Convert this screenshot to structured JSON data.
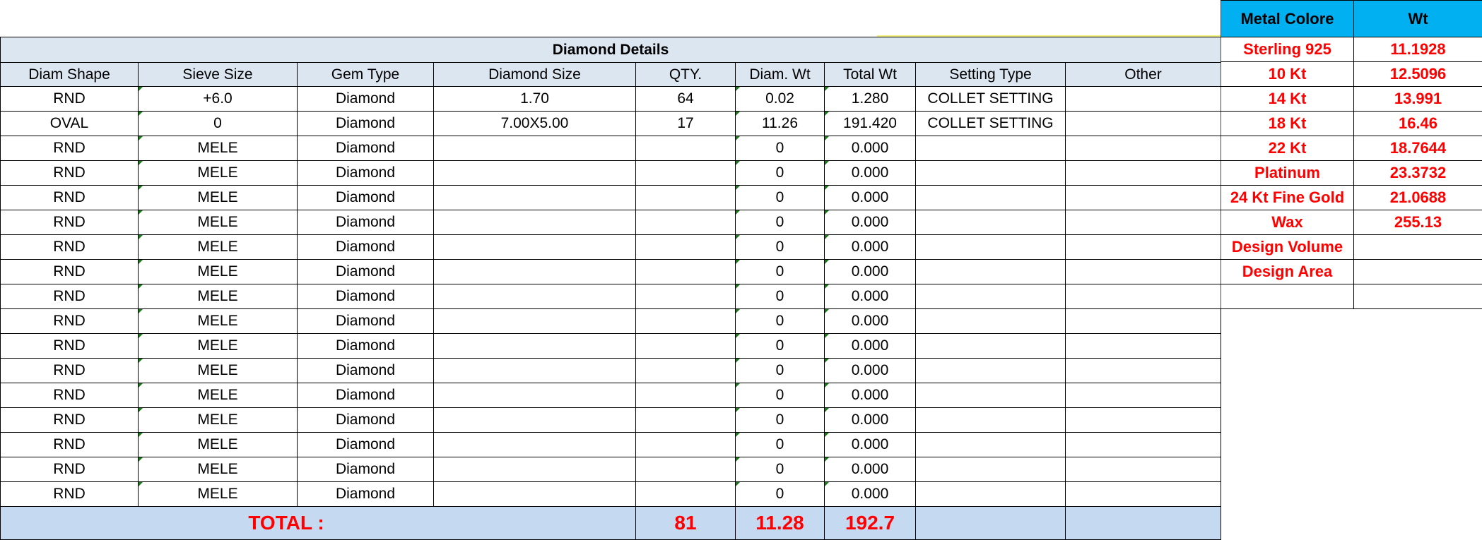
{
  "diamond_details": {
    "title": "Diamond Details",
    "columns": [
      "Diam Shape",
      "Sieve Size",
      "Gem Type",
      "Diamond Size",
      "QTY.",
      "Diam. Wt",
      "Total Wt",
      "Setting Type",
      "Other"
    ],
    "rows": [
      [
        "RND",
        "+6.0",
        "Diamond",
        "1.70",
        "64",
        "0.02",
        "1.280",
        "COLLET SETTING",
        ""
      ],
      [
        "OVAL",
        "0",
        "Diamond",
        "7.00X5.00",
        "17",
        "11.26",
        "191.420",
        "COLLET SETTING",
        ""
      ],
      [
        "RND",
        "MELE",
        "Diamond",
        "",
        "",
        "0",
        "0.000",
        "",
        ""
      ],
      [
        "RND",
        "MELE",
        "Diamond",
        "",
        "",
        "0",
        "0.000",
        "",
        ""
      ],
      [
        "RND",
        "MELE",
        "Diamond",
        "",
        "",
        "0",
        "0.000",
        "",
        ""
      ],
      [
        "RND",
        "MELE",
        "Diamond",
        "",
        "",
        "0",
        "0.000",
        "",
        ""
      ],
      [
        "RND",
        "MELE",
        "Diamond",
        "",
        "",
        "0",
        "0.000",
        "",
        ""
      ],
      [
        "RND",
        "MELE",
        "Diamond",
        "",
        "",
        "0",
        "0.000",
        "",
        ""
      ],
      [
        "RND",
        "MELE",
        "Diamond",
        "",
        "",
        "0",
        "0.000",
        "",
        ""
      ],
      [
        "RND",
        "MELE",
        "Diamond",
        "",
        "",
        "0",
        "0.000",
        "",
        ""
      ],
      [
        "RND",
        "MELE",
        "Diamond",
        "",
        "",
        "0",
        "0.000",
        "",
        ""
      ],
      [
        "RND",
        "MELE",
        "Diamond",
        "",
        "",
        "0",
        "0.000",
        "",
        ""
      ],
      [
        "RND",
        "MELE",
        "Diamond",
        "",
        "",
        "0",
        "0.000",
        "",
        ""
      ],
      [
        "RND",
        "MELE",
        "Diamond",
        "",
        "",
        "0",
        "0.000",
        "",
        ""
      ],
      [
        "RND",
        "MELE",
        "Diamond",
        "",
        "",
        "0",
        "0.000",
        "",
        ""
      ],
      [
        "RND",
        "MELE",
        "Diamond",
        "",
        "",
        "0",
        "0.000",
        "",
        ""
      ],
      [
        "RND",
        "MELE",
        "Diamond",
        "",
        "",
        "0",
        "0.000",
        "",
        ""
      ]
    ],
    "total": {
      "label": "TOTAL :",
      "qty": "81",
      "diam_wt": "11.28",
      "total_wt": "192.7"
    }
  },
  "metal_table": {
    "headers": [
      "Metal Colore",
      "Wt"
    ],
    "rows": [
      [
        "Sterling 925",
        "11.1928"
      ],
      [
        "10 Kt",
        "12.5096"
      ],
      [
        "14 Kt",
        "13.991"
      ],
      [
        "18 Kt",
        "16.46"
      ],
      [
        "22 Kt",
        "18.7644"
      ],
      [
        "Platinum",
        "23.3732"
      ],
      [
        "24 Kt Fine Gold",
        "21.0688"
      ],
      [
        "Wax",
        "255.13"
      ],
      [
        "Design Volume",
        ""
      ],
      [
        "Design Area",
        ""
      ],
      [
        "",
        ""
      ]
    ]
  },
  "colors": {
    "header_bg": "#DCE6F1",
    "total_bg": "#C5D9F1",
    "metal_header_bg": "#00B0F0",
    "accent_text": "#FF0000"
  }
}
